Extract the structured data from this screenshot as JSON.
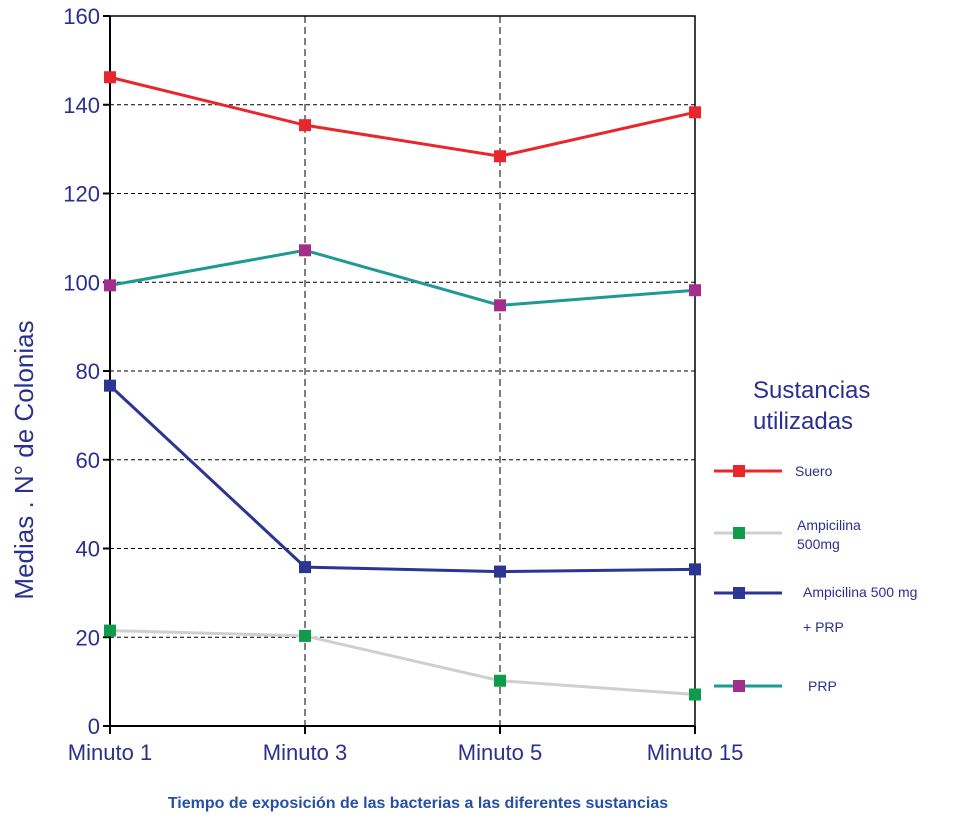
{
  "chart_data": {
    "type": "line",
    "categories": [
      "Minuto 1",
      "Minuto 3",
      "Minuto 5",
      "Minuto 15"
    ],
    "ylabel": "Medias . N° de Colonias",
    "xlabel": "Tiempo de exposición de las bacterias a las diferentes sustancias",
    "ylim": [
      0,
      160
    ],
    "yticks": [
      "0",
      "20",
      "40",
      "60",
      "80",
      "100",
      "120",
      "140",
      "160"
    ],
    "grid": true,
    "legend_placement": "right",
    "legend_title": "Sustancias utilizadas",
    "series": [
      {
        "name": "Suero",
        "values": [
          146.2,
          135.4,
          128.4,
          138.3
        ],
        "line_color": "#e8262b",
        "marker_color": "#e8262b"
      },
      {
        "name": "Ampicilina 500mg",
        "values": [
          21.5,
          20.3,
          10.2,
          7.1
        ],
        "line_color": "#cfcfcf",
        "marker_color": "#0f9b4b"
      },
      {
        "name": "Ampicilina 500 mg + PRP",
        "values": [
          76.7,
          35.8,
          34.8,
          35.3
        ],
        "line_color": "#2b3593",
        "marker_color": "#2b3593"
      },
      {
        "name": "PRP",
        "values": [
          99.3,
          107.2,
          94.8,
          98.2
        ],
        "line_color": "#1d9a93",
        "marker_color": "#a52e8d"
      }
    ]
  },
  "legend": {
    "title_line1": "Sustancias",
    "title_line2": "utilizadas",
    "items": [
      {
        "line1": "Suero",
        "line2": ""
      },
      {
        "line1": "Ampicilina",
        "line2": "500mg"
      },
      {
        "line1": "Ampicilina 500 mg",
        "line2": "+ PRP"
      },
      {
        "line1": "PRP",
        "line2": ""
      }
    ]
  },
  "colors": {
    "text": "#2b2f8f",
    "axis": "#000000",
    "grid": "#000000",
    "xlabel": "#2550a8"
  }
}
